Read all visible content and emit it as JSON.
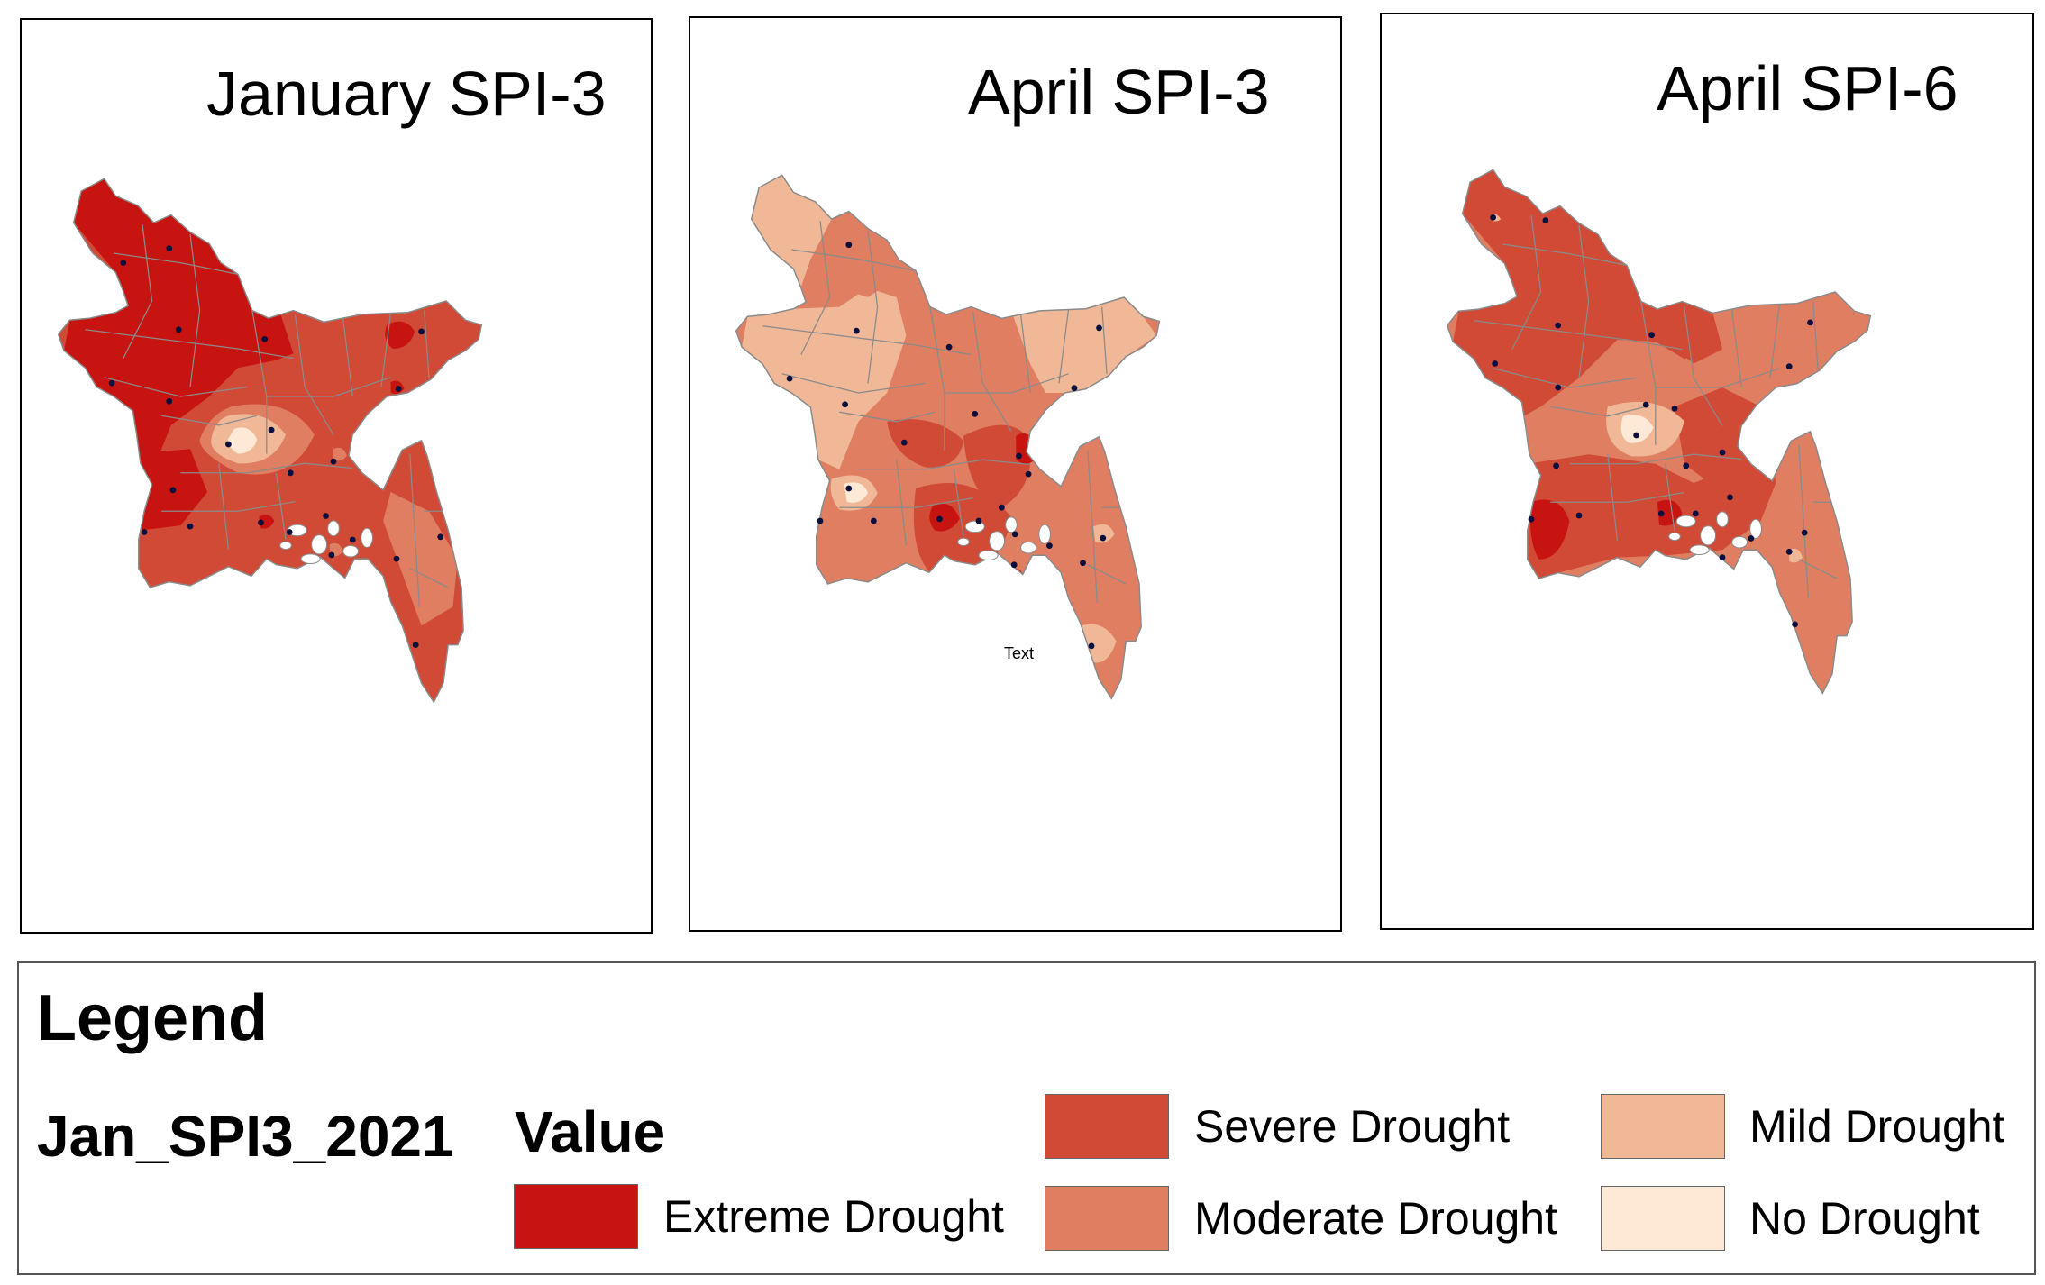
{
  "panels": [
    {
      "title": "January SPI-3",
      "scheme": "jan3",
      "annotation": ""
    },
    {
      "title": "April SPI-3",
      "scheme": "apr3",
      "annotation": "Text"
    },
    {
      "title": "April SPI-6",
      "scheme": "apr6",
      "annotation": ""
    }
  ],
  "legend": {
    "title": "Legend",
    "layer_name": "Jan_SPI3_2021",
    "value_heading": "Value",
    "classes": [
      {
        "label": "Extreme Drought",
        "color": "#c81410"
      },
      {
        "label": "Severe Drought",
        "color": "#d04a36"
      },
      {
        "label": "Moderate Drought",
        "color": "#e07e62"
      },
      {
        "label": "Mild Drought",
        "color": "#f0b896"
      },
      {
        "label": "No Drought",
        "color": "#fde9d6"
      }
    ]
  },
  "colors": {
    "extreme": "#c81410",
    "severe": "#d04a36",
    "moderate": "#e07e62",
    "mild": "#f0b896",
    "none": "#fde9d6",
    "station": "#0b0f3d",
    "boundary": "#8a8a8a"
  }
}
